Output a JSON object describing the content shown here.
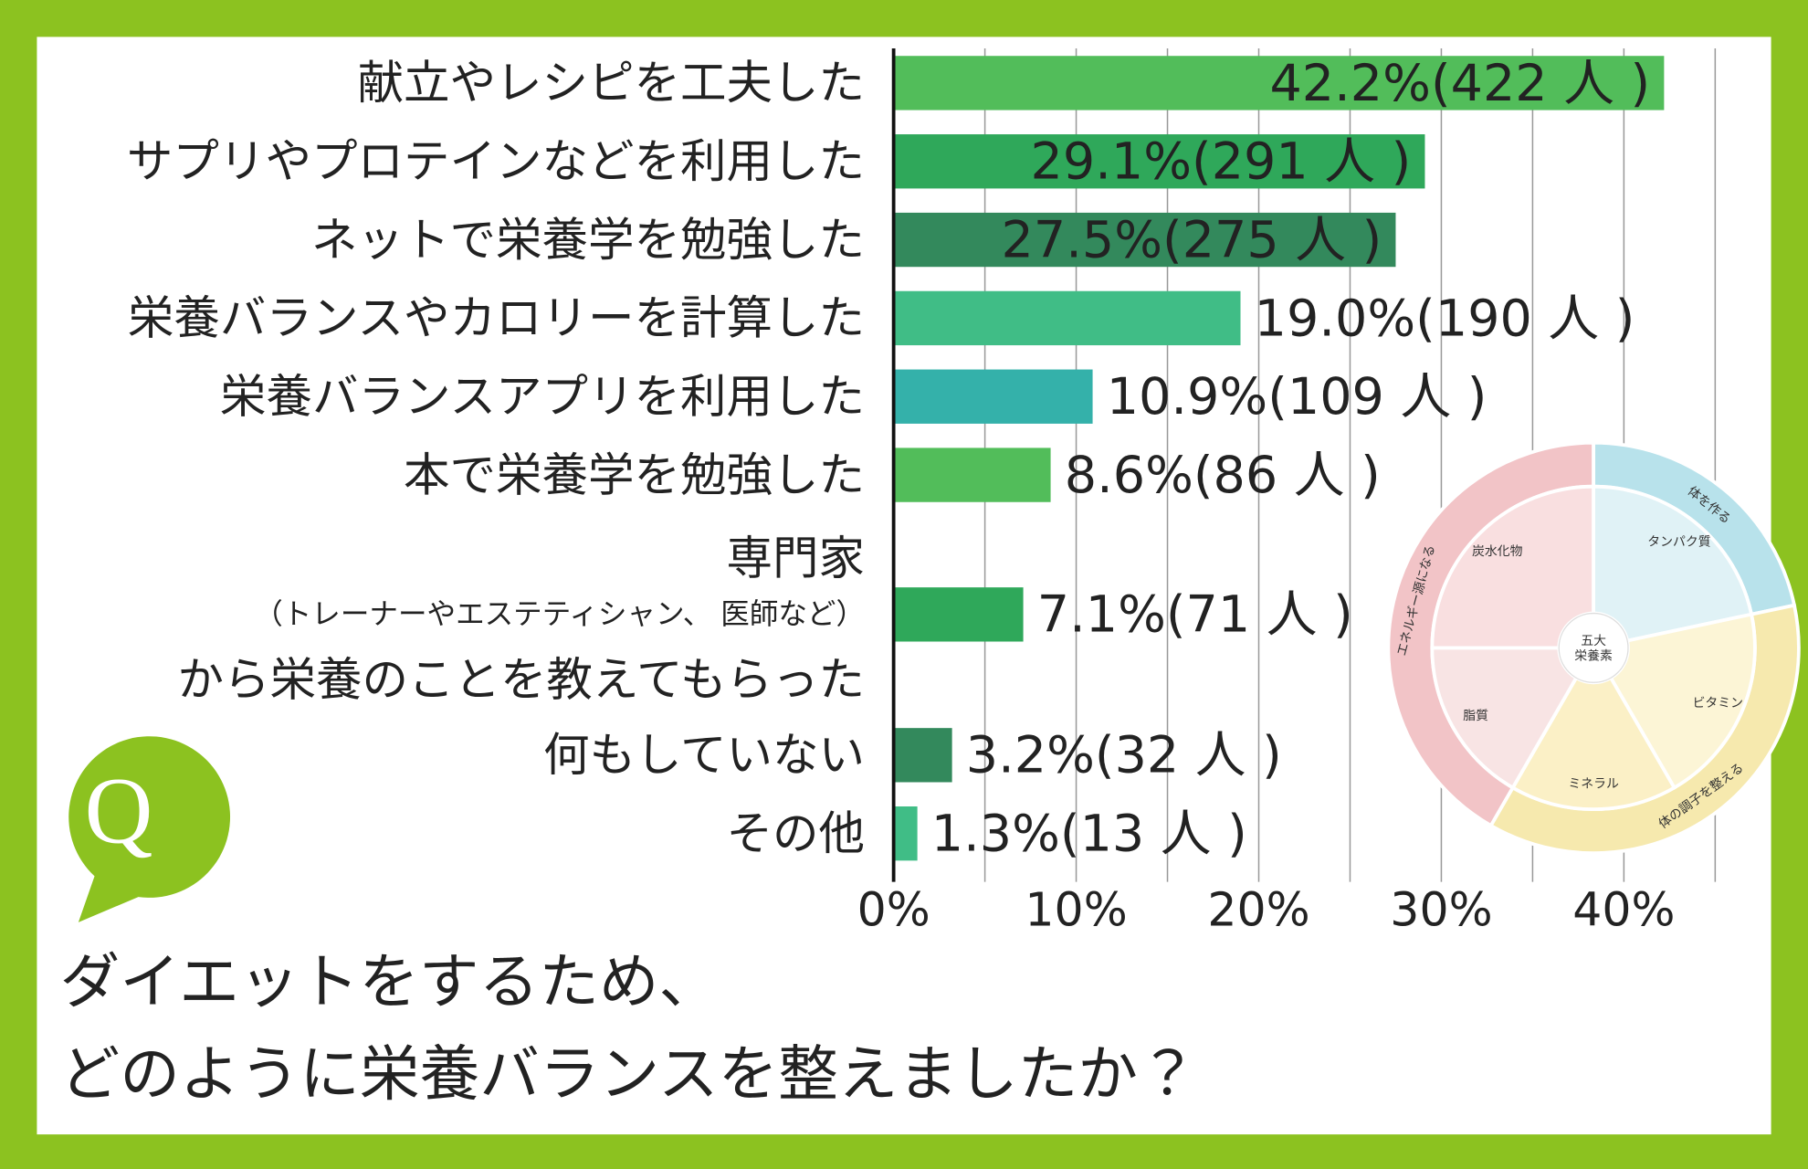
{
  "chart_data": {
    "type": "bar",
    "orientation": "horizontal",
    "title": "ダイエットをするため、\nどのように栄養バランスを整えましたか？",
    "badge": "Q",
    "categories": [
      "献立やレシピを工夫した",
      "サプリやプロテインなどを利用した",
      "ネットで栄養学を勉強した",
      "栄養バランスやカロリーを計算した",
      "栄養バランスアプリを利用した",
      "本で栄養学を勉強した",
      "専門家\nから栄養のことを教えてもらった",
      "何もしていない",
      "その他"
    ],
    "category_notes": [
      null,
      null,
      null,
      null,
      null,
      null,
      "（トレーナーやエステティシャン、 医師など）",
      null,
      null
    ],
    "values": [
      42.2,
      29.1,
      27.5,
      19.0,
      10.9,
      8.6,
      7.1,
      3.2,
      1.3
    ],
    "value_labels": [
      "42.2%(422 人 )",
      "29.1%(291 人 )",
      "27.5%(275 人 )",
      "19.0%(190 人 )",
      "10.9%(109 人 )",
      "8.6%(86 人 )",
      "7.1%(71 人 )",
      "3.2%(32 人 )",
      "1.3%(13 人 )"
    ],
    "colors": [
      "#52bd5a",
      "#2fa85a",
      "#33895c",
      "#40bd86",
      "#34b1aa",
      "#52bd5a",
      "#2fa85a",
      "#33895c",
      "#40bd86"
    ],
    "xlim": [
      0,
      48
    ],
    "xticks": [
      {
        "value": 0,
        "label": "0%"
      },
      {
        "value": 10,
        "label": "10%"
      },
      {
        "value": 20,
        "label": "20%"
      },
      {
        "value": 30,
        "label": "30%"
      },
      {
        "value": 40,
        "label": "40%"
      }
    ],
    "xgrid": [
      5,
      10,
      15,
      20,
      25,
      30,
      35,
      40,
      45
    ],
    "frame_color": "#8cc220",
    "illustration": {
      "center": "五大\n栄養素",
      "nutrients": [
        "炭水化物",
        "タンパク質",
        "ビタミン",
        "ミネラル",
        "脂質"
      ],
      "roles": [
        "エネルギー源になる",
        "体を作る",
        "体の調子を整える"
      ]
    }
  }
}
